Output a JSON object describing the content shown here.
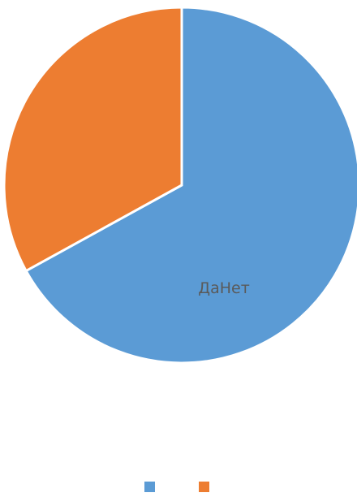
{
  "chart_data": {
    "type": "pie",
    "slices": [
      {
        "label": "",
        "value": 0.67,
        "color": "#5b9bd5"
      },
      {
        "label": "",
        "value": 0.33,
        "color": "#ed7d31"
      }
    ],
    "inside_label": "ДаНет",
    "legend": {
      "position": "bottom",
      "entries": [
        {
          "label": "",
          "color": "#5b9bd5"
        },
        {
          "label": "",
          "color": "#ed7d31"
        }
      ]
    }
  }
}
